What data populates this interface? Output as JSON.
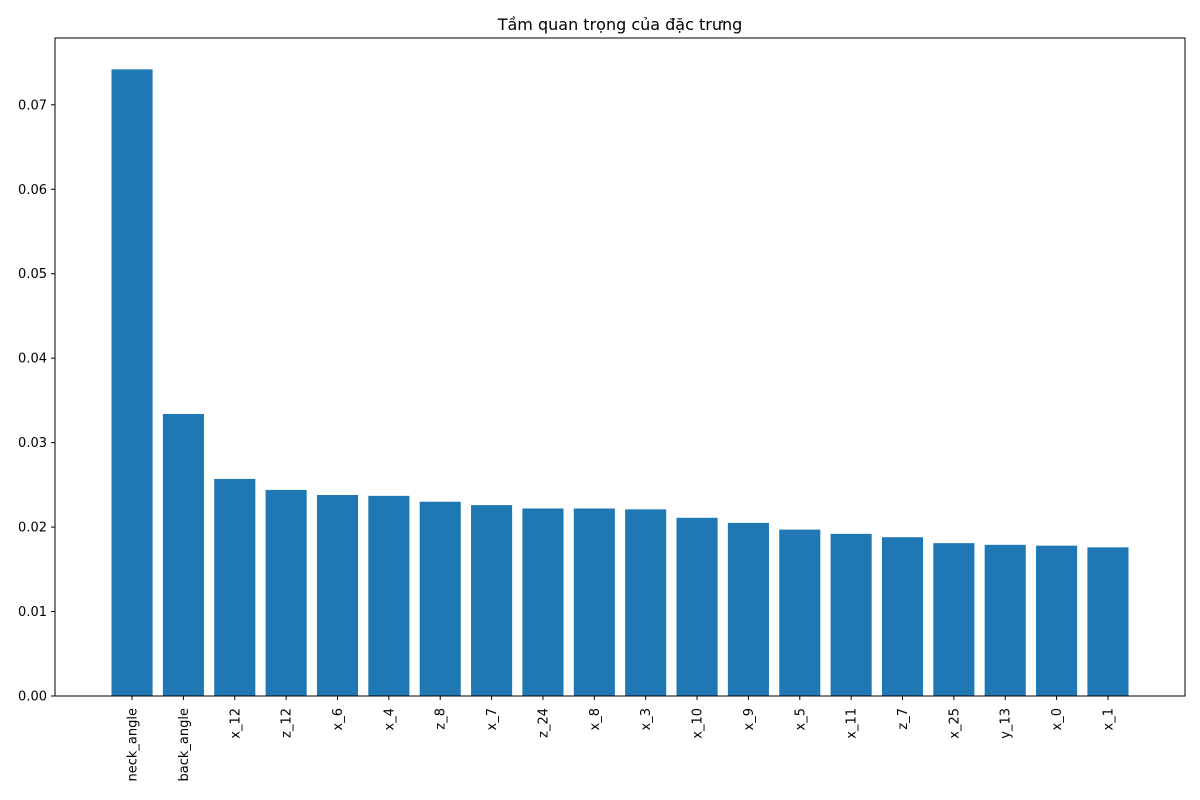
{
  "chart_data": {
    "type": "bar",
    "title": "Tầm quan trọng của đặc trưng",
    "xlabel": "",
    "ylabel": "",
    "categories": [
      "neck_angle",
      "back_angle",
      "x_12",
      "z_12",
      "x_6",
      "x_4",
      "z_8",
      "x_7",
      "z_24",
      "x_8",
      "x_3",
      "x_10",
      "x_9",
      "x_5",
      "x_11",
      "z_7",
      "x_25",
      "y_13",
      "x_0",
      "x_1"
    ],
    "values": [
      0.0742,
      0.0334,
      0.0257,
      0.0244,
      0.0238,
      0.0237,
      0.023,
      0.0226,
      0.0222,
      0.0222,
      0.0221,
      0.0211,
      0.0205,
      0.0197,
      0.0192,
      0.0188,
      0.0181,
      0.0179,
      0.0178,
      0.0176
    ],
    "ylim": [
      0,
      0.0742
    ],
    "yticks": [
      "0.00",
      "0.01",
      "0.02",
      "0.03",
      "0.04",
      "0.05",
      "0.06",
      "0.07"
    ],
    "grid": false,
    "colors": {
      "bar": "#1f77b4",
      "axes": "#000000",
      "background": "#ffffff"
    }
  }
}
